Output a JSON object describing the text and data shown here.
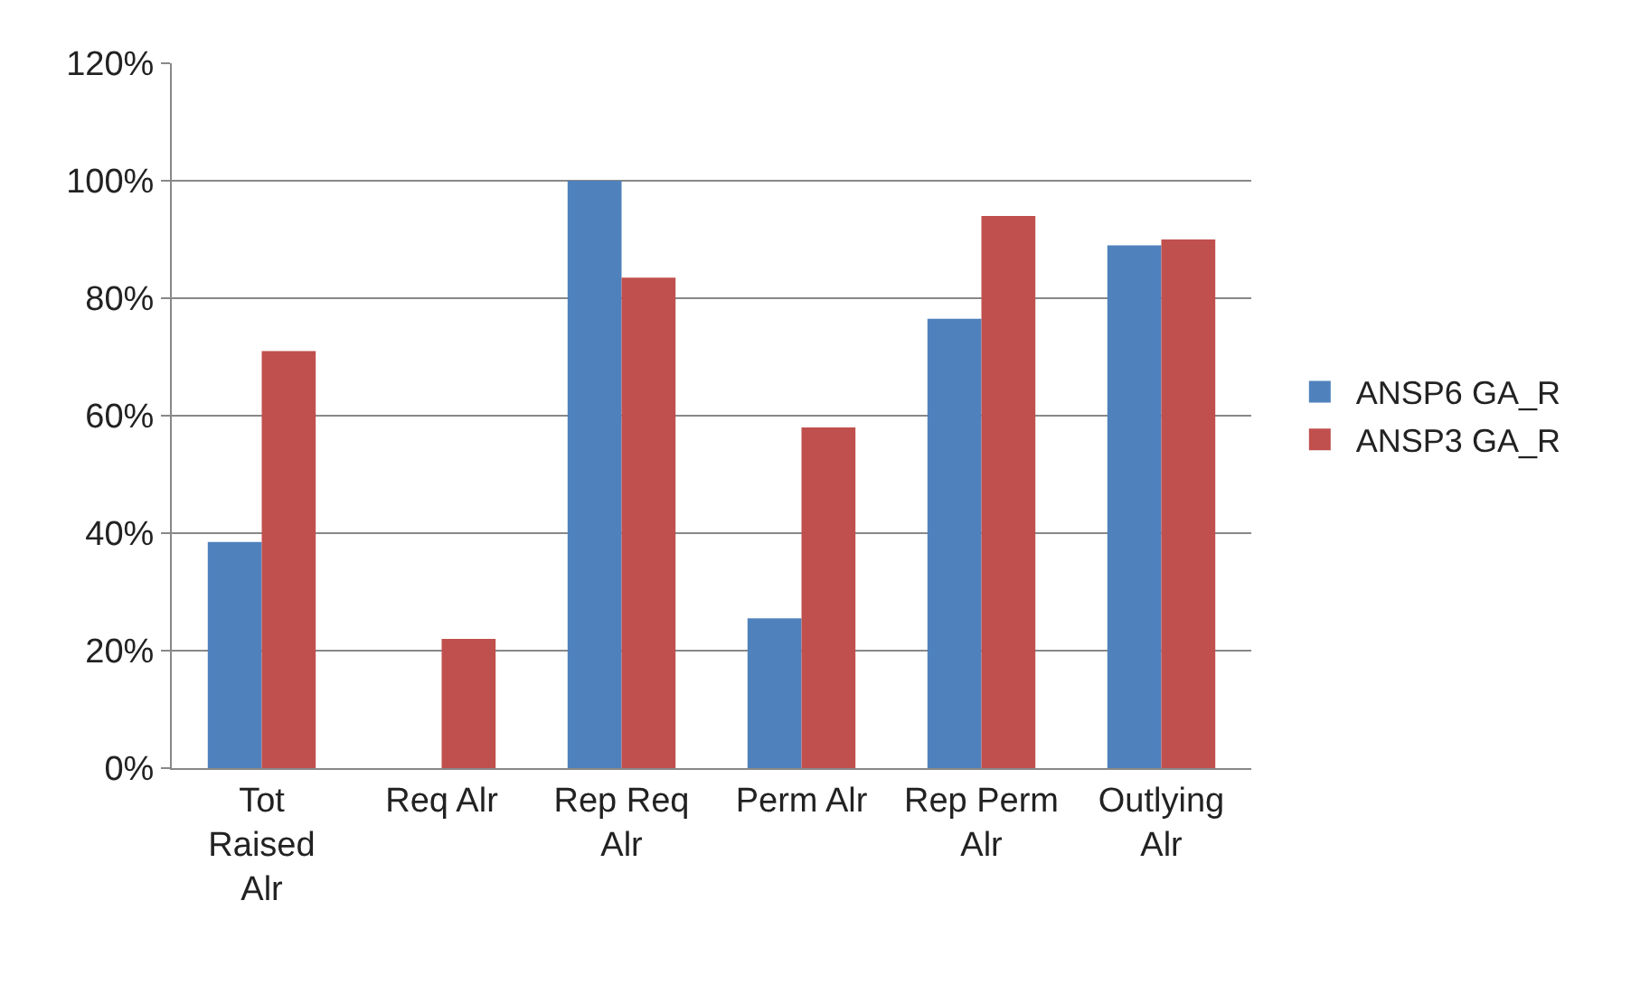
{
  "chart_data": {
    "type": "bar",
    "categories": [
      "Tot Raised Alr",
      "Req Alr",
      "Rep Req Alr",
      "Perm Alr",
      "Rep Perm Alr",
      "Outlying Alr"
    ],
    "series": [
      {
        "name": "ANSP6 GA_R",
        "color": "#4f81bd",
        "values": [
          38.5,
          0,
          100,
          25.5,
          76.5,
          89
        ]
      },
      {
        "name": "ANSP3 GA_R",
        "color": "#c0504d",
        "values": [
          71,
          22,
          83.5,
          58,
          94,
          90
        ]
      }
    ],
    "ylim": [
      0,
      120
    ],
    "yticks": [
      {
        "value": 0,
        "label": "0%"
      },
      {
        "value": 20,
        "label": "20%"
      },
      {
        "value": 40,
        "label": "40%"
      },
      {
        "value": 60,
        "label": "60%"
      },
      {
        "value": 80,
        "label": "80%"
      },
      {
        "value": 100,
        "label": "100%"
      },
      {
        "value": 120,
        "label": "120%"
      }
    ],
    "grid": "y",
    "legend": "right"
  }
}
